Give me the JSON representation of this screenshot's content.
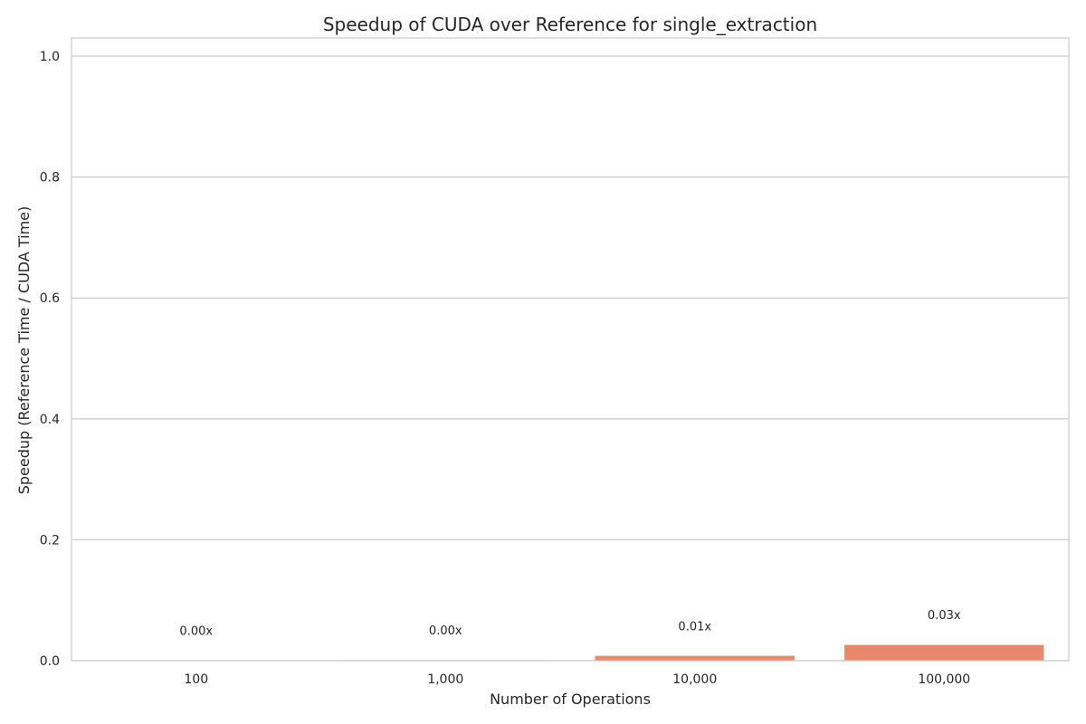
{
  "chart_data": {
    "type": "bar",
    "title": "Speedup of CUDA over Reference for single_extraction",
    "xlabel": "Number of Operations",
    "ylabel": "Speedup (Reference Time / CUDA Time)",
    "categories": [
      "100",
      "1,000",
      "10,000",
      "100,000"
    ],
    "values": [
      0.0005,
      0.0012,
      0.008,
      0.026
    ],
    "data_labels": [
      "0.00x",
      "0.00x",
      "0.01x",
      "0.03x"
    ],
    "bar_colors": [
      "#a7bbd6",
      "#ead0c6",
      "#e8896b",
      "#e8896b"
    ],
    "ylim": [
      0,
      1.03
    ],
    "yticks": [
      0.0,
      0.2,
      0.4,
      0.6,
      0.8,
      1.0
    ],
    "ytick_labels": [
      "0.0",
      "0.2",
      "0.4",
      "0.6",
      "0.8",
      "1.0"
    ],
    "grid": true,
    "grid_axis": "y"
  }
}
